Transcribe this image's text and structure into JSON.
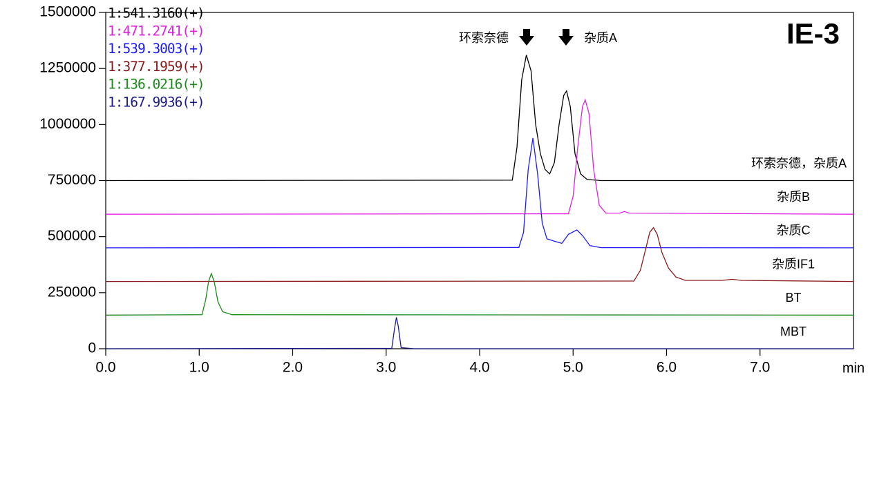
{
  "chart_data": {
    "type": "line",
    "title": "IE-3",
    "x_label": "min",
    "annotations": [
      "环索奈德",
      "杂质A"
    ],
    "xlim": [
      0,
      8
    ],
    "xticks": [
      {
        "value": 0,
        "label": "0.0"
      },
      {
        "value": 1,
        "label": "1.0"
      },
      {
        "value": 2,
        "label": "2.0"
      },
      {
        "value": 3,
        "label": "3.0"
      },
      {
        "value": 4,
        "label": "4.0"
      },
      {
        "value": 5,
        "label": "5.0"
      },
      {
        "value": 6,
        "label": "6.0"
      },
      {
        "value": 7,
        "label": "7.0"
      }
    ],
    "ylim": [
      0,
      1500000
    ],
    "yticks": [
      0,
      250000,
      500000,
      750000,
      1000000,
      1250000,
      1500000
    ],
    "series": [
      {
        "name": "1:541.3160(+)",
        "label": "环索奈德，杂质A",
        "color": "#000000",
        "x": [
          0,
          4.35,
          4.4,
          4.45,
          4.5,
          4.55,
          4.6,
          4.65,
          4.7,
          4.75,
          4.8,
          4.85,
          4.9,
          4.93,
          4.97,
          5.02,
          5.08,
          5.15,
          5.3,
          8.0
        ],
        "values": [
          750000,
          752000,
          900000,
          1200000,
          1310000,
          1240000,
          1000000,
          870000,
          800000,
          780000,
          830000,
          1000000,
          1130000,
          1150000,
          1080000,
          870000,
          780000,
          755000,
          750000,
          750000
        ]
      },
      {
        "name": "1:471.2741(+)",
        "label": "杂质B",
        "color": "#e020e0",
        "x": [
          0,
          4.95,
          5.0,
          5.05,
          5.1,
          5.13,
          5.17,
          5.22,
          5.28,
          5.35,
          5.5,
          5.55,
          5.6,
          8.0
        ],
        "values": [
          600000,
          602000,
          680000,
          900000,
          1080000,
          1110000,
          1050000,
          800000,
          640000,
          605000,
          605000,
          612000,
          605000,
          600000
        ]
      },
      {
        "name": "1:539.3003(+)",
        "label": "杂质C",
        "color": "#1a1aff",
        "x": [
          0,
          4.42,
          4.47,
          4.52,
          4.57,
          4.62,
          4.67,
          4.72,
          4.8,
          4.88,
          4.95,
          5.04,
          5.1,
          5.18,
          5.3,
          8.0
        ],
        "values": [
          450000,
          452000,
          520000,
          800000,
          940000,
          780000,
          560000,
          490000,
          480000,
          470000,
          510000,
          530000,
          505000,
          460000,
          451000,
          450000
        ]
      },
      {
        "name": "1:377.1959(+)",
        "label": "杂质IF1",
        "color": "#8b1a1a",
        "x": [
          0,
          5.65,
          5.72,
          5.78,
          5.82,
          5.86,
          5.9,
          5.95,
          6.02,
          6.1,
          6.2,
          6.6,
          6.7,
          6.8,
          8.0
        ],
        "values": [
          300000,
          302000,
          350000,
          450000,
          520000,
          540000,
          510000,
          430000,
          360000,
          320000,
          305000,
          305000,
          310000,
          305000,
          300000
        ]
      },
      {
        "name": "1:136.0216(+)",
        "label": "BT",
        "color": "#1a8a1a",
        "x": [
          0,
          1.03,
          1.07,
          1.1,
          1.13,
          1.16,
          1.2,
          1.25,
          1.35,
          8.0
        ],
        "values": [
          150000,
          152000,
          220000,
          300000,
          335000,
          300000,
          210000,
          165000,
          152000,
          150000
        ]
      },
      {
        "name": "1:167.9936(+)",
        "label": "MBT",
        "color": "#1a1a8a",
        "x": [
          0,
          3.06,
          3.09,
          3.11,
          3.13,
          3.16,
          3.3,
          8.0
        ],
        "values": [
          0,
          2000,
          90000,
          140000,
          100000,
          5000,
          0,
          0
        ]
      }
    ]
  }
}
